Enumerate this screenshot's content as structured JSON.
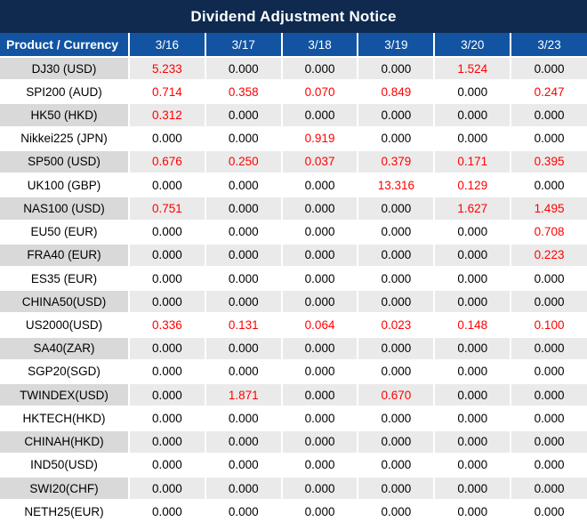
{
  "title": "Dividend Adjustment Notice",
  "colors": {
    "title_bar_bg": "#0F2A4E",
    "header_row_bg": "#1254A2",
    "stripe_product_cell": "#D9D9D9",
    "stripe_value_cells": "#EAEAEA",
    "highlight_value": "#FE0000",
    "normal_value": "#000000"
  },
  "chart_data": {
    "type": "table",
    "title": "Dividend Adjustment Notice",
    "columns": [
      "Product / Currency",
      "3/16",
      "3/17",
      "3/18",
      "3/19",
      "3/20",
      "3/23"
    ],
    "layout": {
      "striped_rows": true,
      "nonzero_values_highlighted_red": true
    },
    "rows": [
      {
        "product": "DJ30 (USD)",
        "values": [
          "5.233",
          "0.000",
          "0.000",
          "0.000",
          "1.524",
          "0.000"
        ],
        "red": [
          true,
          false,
          false,
          false,
          true,
          false
        ]
      },
      {
        "product": "SPI200 (AUD)",
        "values": [
          "0.714",
          "0.358",
          "0.070",
          "0.849",
          "0.000",
          "0.247"
        ],
        "red": [
          true,
          true,
          true,
          true,
          false,
          true
        ]
      },
      {
        "product": "HK50 (HKD)",
        "values": [
          "0.312",
          "0.000",
          "0.000",
          "0.000",
          "0.000",
          "0.000"
        ],
        "red": [
          true,
          false,
          false,
          false,
          false,
          false
        ]
      },
      {
        "product": "Nikkei225 (JPN)",
        "values": [
          "0.000",
          "0.000",
          "0.919",
          "0.000",
          "0.000",
          "0.000"
        ],
        "red": [
          false,
          false,
          true,
          false,
          false,
          false
        ]
      },
      {
        "product": "SP500 (USD)",
        "values": [
          "0.676",
          "0.250",
          "0.037",
          "0.379",
          "0.171",
          "0.395"
        ],
        "red": [
          true,
          true,
          true,
          true,
          true,
          true
        ]
      },
      {
        "product": "UK100 (GBP)",
        "values": [
          "0.000",
          "0.000",
          "0.000",
          "13.316",
          "0.129",
          "0.000"
        ],
        "red": [
          false,
          false,
          false,
          true,
          true,
          false
        ]
      },
      {
        "product": "NAS100 (USD)",
        "values": [
          "0.751",
          "0.000",
          "0.000",
          "0.000",
          "1.627",
          "1.495"
        ],
        "red": [
          true,
          false,
          false,
          false,
          true,
          true
        ]
      },
      {
        "product": "EU50 (EUR)",
        "values": [
          "0.000",
          "0.000",
          "0.000",
          "0.000",
          "0.000",
          "0.708"
        ],
        "red": [
          false,
          false,
          false,
          false,
          false,
          true
        ]
      },
      {
        "product": "FRA40 (EUR)",
        "values": [
          "0.000",
          "0.000",
          "0.000",
          "0.000",
          "0.000",
          "0.223"
        ],
        "red": [
          false,
          false,
          false,
          false,
          false,
          true
        ]
      },
      {
        "product": "ES35 (EUR)",
        "values": [
          "0.000",
          "0.000",
          "0.000",
          "0.000",
          "0.000",
          "0.000"
        ],
        "red": [
          false,
          false,
          false,
          false,
          false,
          false
        ]
      },
      {
        "product": "CHINA50(USD)",
        "values": [
          "0.000",
          "0.000",
          "0.000",
          "0.000",
          "0.000",
          "0.000"
        ],
        "red": [
          false,
          false,
          false,
          false,
          false,
          false
        ]
      },
      {
        "product": "US2000(USD)",
        "values": [
          "0.336",
          "0.131",
          "0.064",
          "0.023",
          "0.148",
          "0.100"
        ],
        "red": [
          true,
          true,
          true,
          true,
          true,
          true
        ]
      },
      {
        "product": "SA40(ZAR)",
        "values": [
          "0.000",
          "0.000",
          "0.000",
          "0.000",
          "0.000",
          "0.000"
        ],
        "red": [
          false,
          false,
          false,
          false,
          false,
          false
        ]
      },
      {
        "product": "SGP20(SGD)",
        "values": [
          "0.000",
          "0.000",
          "0.000",
          "0.000",
          "0.000",
          "0.000"
        ],
        "red": [
          false,
          false,
          false,
          false,
          false,
          false
        ]
      },
      {
        "product": "TWINDEX(USD)",
        "values": [
          "0.000",
          "1.871",
          "0.000",
          "0.670",
          "0.000",
          "0.000"
        ],
        "red": [
          false,
          true,
          false,
          true,
          false,
          false
        ]
      },
      {
        "product": "HKTECH(HKD)",
        "values": [
          "0.000",
          "0.000",
          "0.000",
          "0.000",
          "0.000",
          "0.000"
        ],
        "red": [
          false,
          false,
          false,
          false,
          false,
          false
        ]
      },
      {
        "product": "CHINAH(HKD)",
        "values": [
          "0.000",
          "0.000",
          "0.000",
          "0.000",
          "0.000",
          "0.000"
        ],
        "red": [
          false,
          false,
          false,
          false,
          false,
          false
        ]
      },
      {
        "product": "IND50(USD)",
        "values": [
          "0.000",
          "0.000",
          "0.000",
          "0.000",
          "0.000",
          "0.000"
        ],
        "red": [
          false,
          false,
          false,
          false,
          false,
          false
        ]
      },
      {
        "product": "SWI20(CHF)",
        "values": [
          "0.000",
          "0.000",
          "0.000",
          "0.000",
          "0.000",
          "0.000"
        ],
        "red": [
          false,
          false,
          false,
          false,
          false,
          false
        ]
      },
      {
        "product": "NETH25(EUR)",
        "values": [
          "0.000",
          "0.000",
          "0.000",
          "0.000",
          "0.000",
          "0.000"
        ],
        "red": [
          false,
          false,
          false,
          false,
          false,
          false
        ]
      }
    ]
  }
}
